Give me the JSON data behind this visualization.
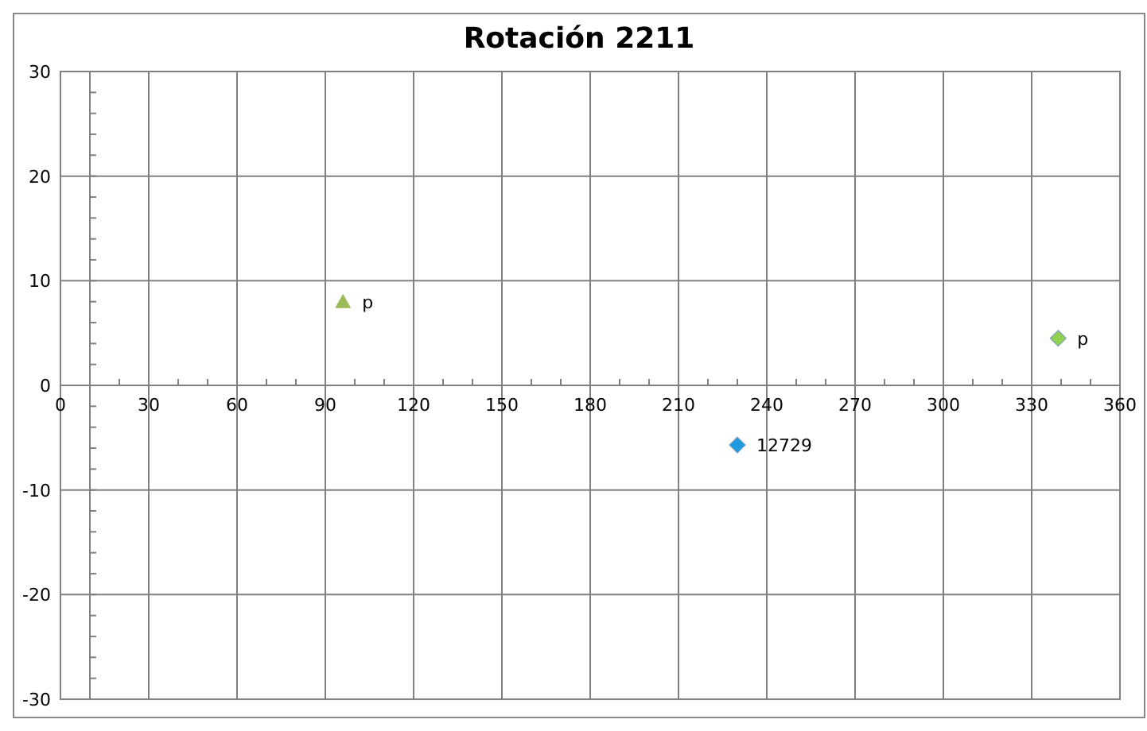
{
  "chart_data": {
    "type": "scatter",
    "title": "Rotación 2211",
    "series": [
      {
        "x": [
          96
        ],
        "values": [
          8
        ],
        "color": "#9bbb59",
        "marker": "triangle"
      },
      {
        "x": [
          339
        ],
        "values": [
          4.5
        ],
        "color": "#92d050",
        "marker": "diamond"
      },
      {
        "x": [
          230
        ],
        "values": [
          -5.7
        ],
        "color": "#1f9be0",
        "marker": "diamond"
      }
    ],
    "annotations": [
      {
        "text": "p",
        "x": 96,
        "y": 8
      },
      {
        "text": "p",
        "x": 339,
        "y": 4.5
      },
      {
        "text": "12729",
        "x": 230,
        "y": -5.7
      }
    ],
    "xlim": [
      0,
      360
    ],
    "xticks": [
      0,
      30,
      60,
      90,
      120,
      150,
      180,
      210,
      240,
      270,
      300,
      330,
      360
    ],
    "ylim": [
      -30,
      30
    ],
    "yticks": [
      -30,
      -20,
      -10,
      0,
      10,
      20,
      30
    ],
    "ref_lines": [
      {
        "axis": "x",
        "value": 10,
        "color": "#808080"
      }
    ],
    "grid": true
  }
}
